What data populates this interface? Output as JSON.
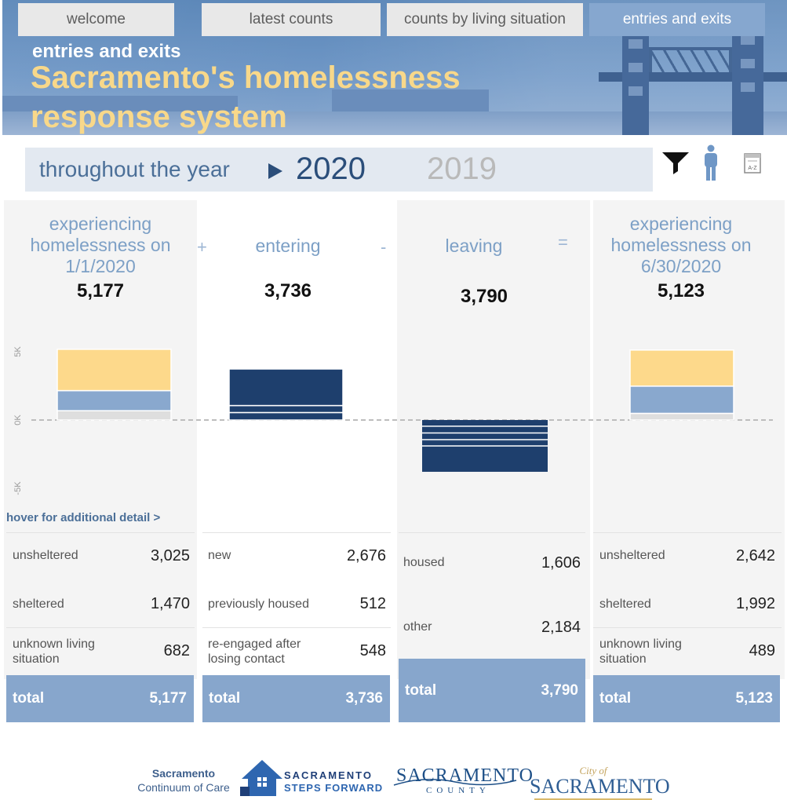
{
  "tabs": [
    {
      "label": "welcome",
      "active": false
    },
    {
      "label": "latest counts",
      "active": false
    },
    {
      "label": "counts by living situation",
      "active": false
    },
    {
      "label": "entries and exits",
      "active": true
    }
  ],
  "header": {
    "subtitle": "entries and exits",
    "title": "Sacramento's homelessness response system"
  },
  "yearbar": {
    "label": "throughout the year",
    "selected_year": "2020",
    "other_year": "2019"
  },
  "tools": [
    "filter-icon",
    "person-icon",
    "sort-az-icon"
  ],
  "colors": {
    "unsheltered": "#fdd98b",
    "sheltered": "#89a8ce",
    "unknown": "#dedede",
    "flow": "#1e3f6d",
    "total": "#87a6cc"
  },
  "operators": {
    "plus": "+",
    "minus": "-",
    "equals": "="
  },
  "hover_text": "hover for additional detail >",
  "chart_data": {
    "type": "bar",
    "title": "",
    "xlabel": "",
    "ylabel": "",
    "ylim": [
      -5000,
      5000
    ],
    "y_ticks": [
      {
        "value": 5000,
        "label": "5K"
      },
      {
        "value": 0,
        "label": "0K"
      },
      {
        "value": -5000,
        "label": "-5K"
      }
    ],
    "categories": [
      "experiencing homelessness on 1/1/2020",
      "entering",
      "leaving",
      "experiencing homelessness on 6/30/2020"
    ],
    "series": [
      {
        "name": "unsheltered",
        "values": [
          3025,
          null,
          null,
          2642
        ]
      },
      {
        "name": "sheltered",
        "values": [
          1470,
          null,
          null,
          1992
        ]
      },
      {
        "name": "unknown living situation",
        "values": [
          682,
          null,
          null,
          489
        ]
      },
      {
        "name": "new",
        "values": [
          null,
          2676,
          null,
          null
        ]
      },
      {
        "name": "previously housed",
        "values": [
          null,
          512,
          null,
          null
        ]
      },
      {
        "name": "re-engaged after losing contact",
        "values": [
          null,
          548,
          null,
          null
        ]
      },
      {
        "name": "housed",
        "values": [
          null,
          null,
          -1606,
          null
        ]
      },
      {
        "name": "other",
        "values": [
          null,
          null,
          -2184,
          null
        ]
      }
    ],
    "totals": [
      5177,
      3736,
      -3790,
      5123
    ]
  },
  "panels": [
    {
      "title": "experiencing homelessness on 1/1/2020",
      "value": "5,177",
      "rows": [
        {
          "label": "unsheltered",
          "value": "3,025"
        },
        {
          "label": "sheltered",
          "value": "1,470"
        },
        {
          "label": "unknown living situation",
          "value": "682"
        }
      ],
      "total_label": "total",
      "total_value": "5,177"
    },
    {
      "title": "entering",
      "value": "3,736",
      "rows": [
        {
          "label": "new",
          "value": "2,676"
        },
        {
          "label": "previously housed",
          "value": "512"
        },
        {
          "label": "re-engaged after losing contact",
          "value": "548"
        }
      ],
      "total_label": "total",
      "total_value": "3,736"
    },
    {
      "title": "leaving",
      "value": "3,790",
      "rows": [
        {
          "label": "housed",
          "value": "1,606"
        },
        {
          "label": "other",
          "value": "2,184"
        }
      ],
      "total_label": "total",
      "total_value": "3,790"
    },
    {
      "title": "experiencing homelessness on 6/30/2020",
      "value": "5,123",
      "rows": [
        {
          "label": "unsheltered",
          "value": "2,642"
        },
        {
          "label": "sheltered",
          "value": "1,992"
        },
        {
          "label": "unknown living situation",
          "value": "489"
        }
      ],
      "total_label": "total",
      "total_value": "5,123"
    }
  ],
  "footer": {
    "coc_line1": "Sacramento",
    "coc_line2": "Continuum of Care",
    "ssf_line1": "SACRAMENTO",
    "ssf_line2": "STEPS FORWARD",
    "county_big": "SACRAMENTO",
    "county_small": "COUNTY",
    "city_small": "City of",
    "city_big": "SACRAMENTO"
  }
}
